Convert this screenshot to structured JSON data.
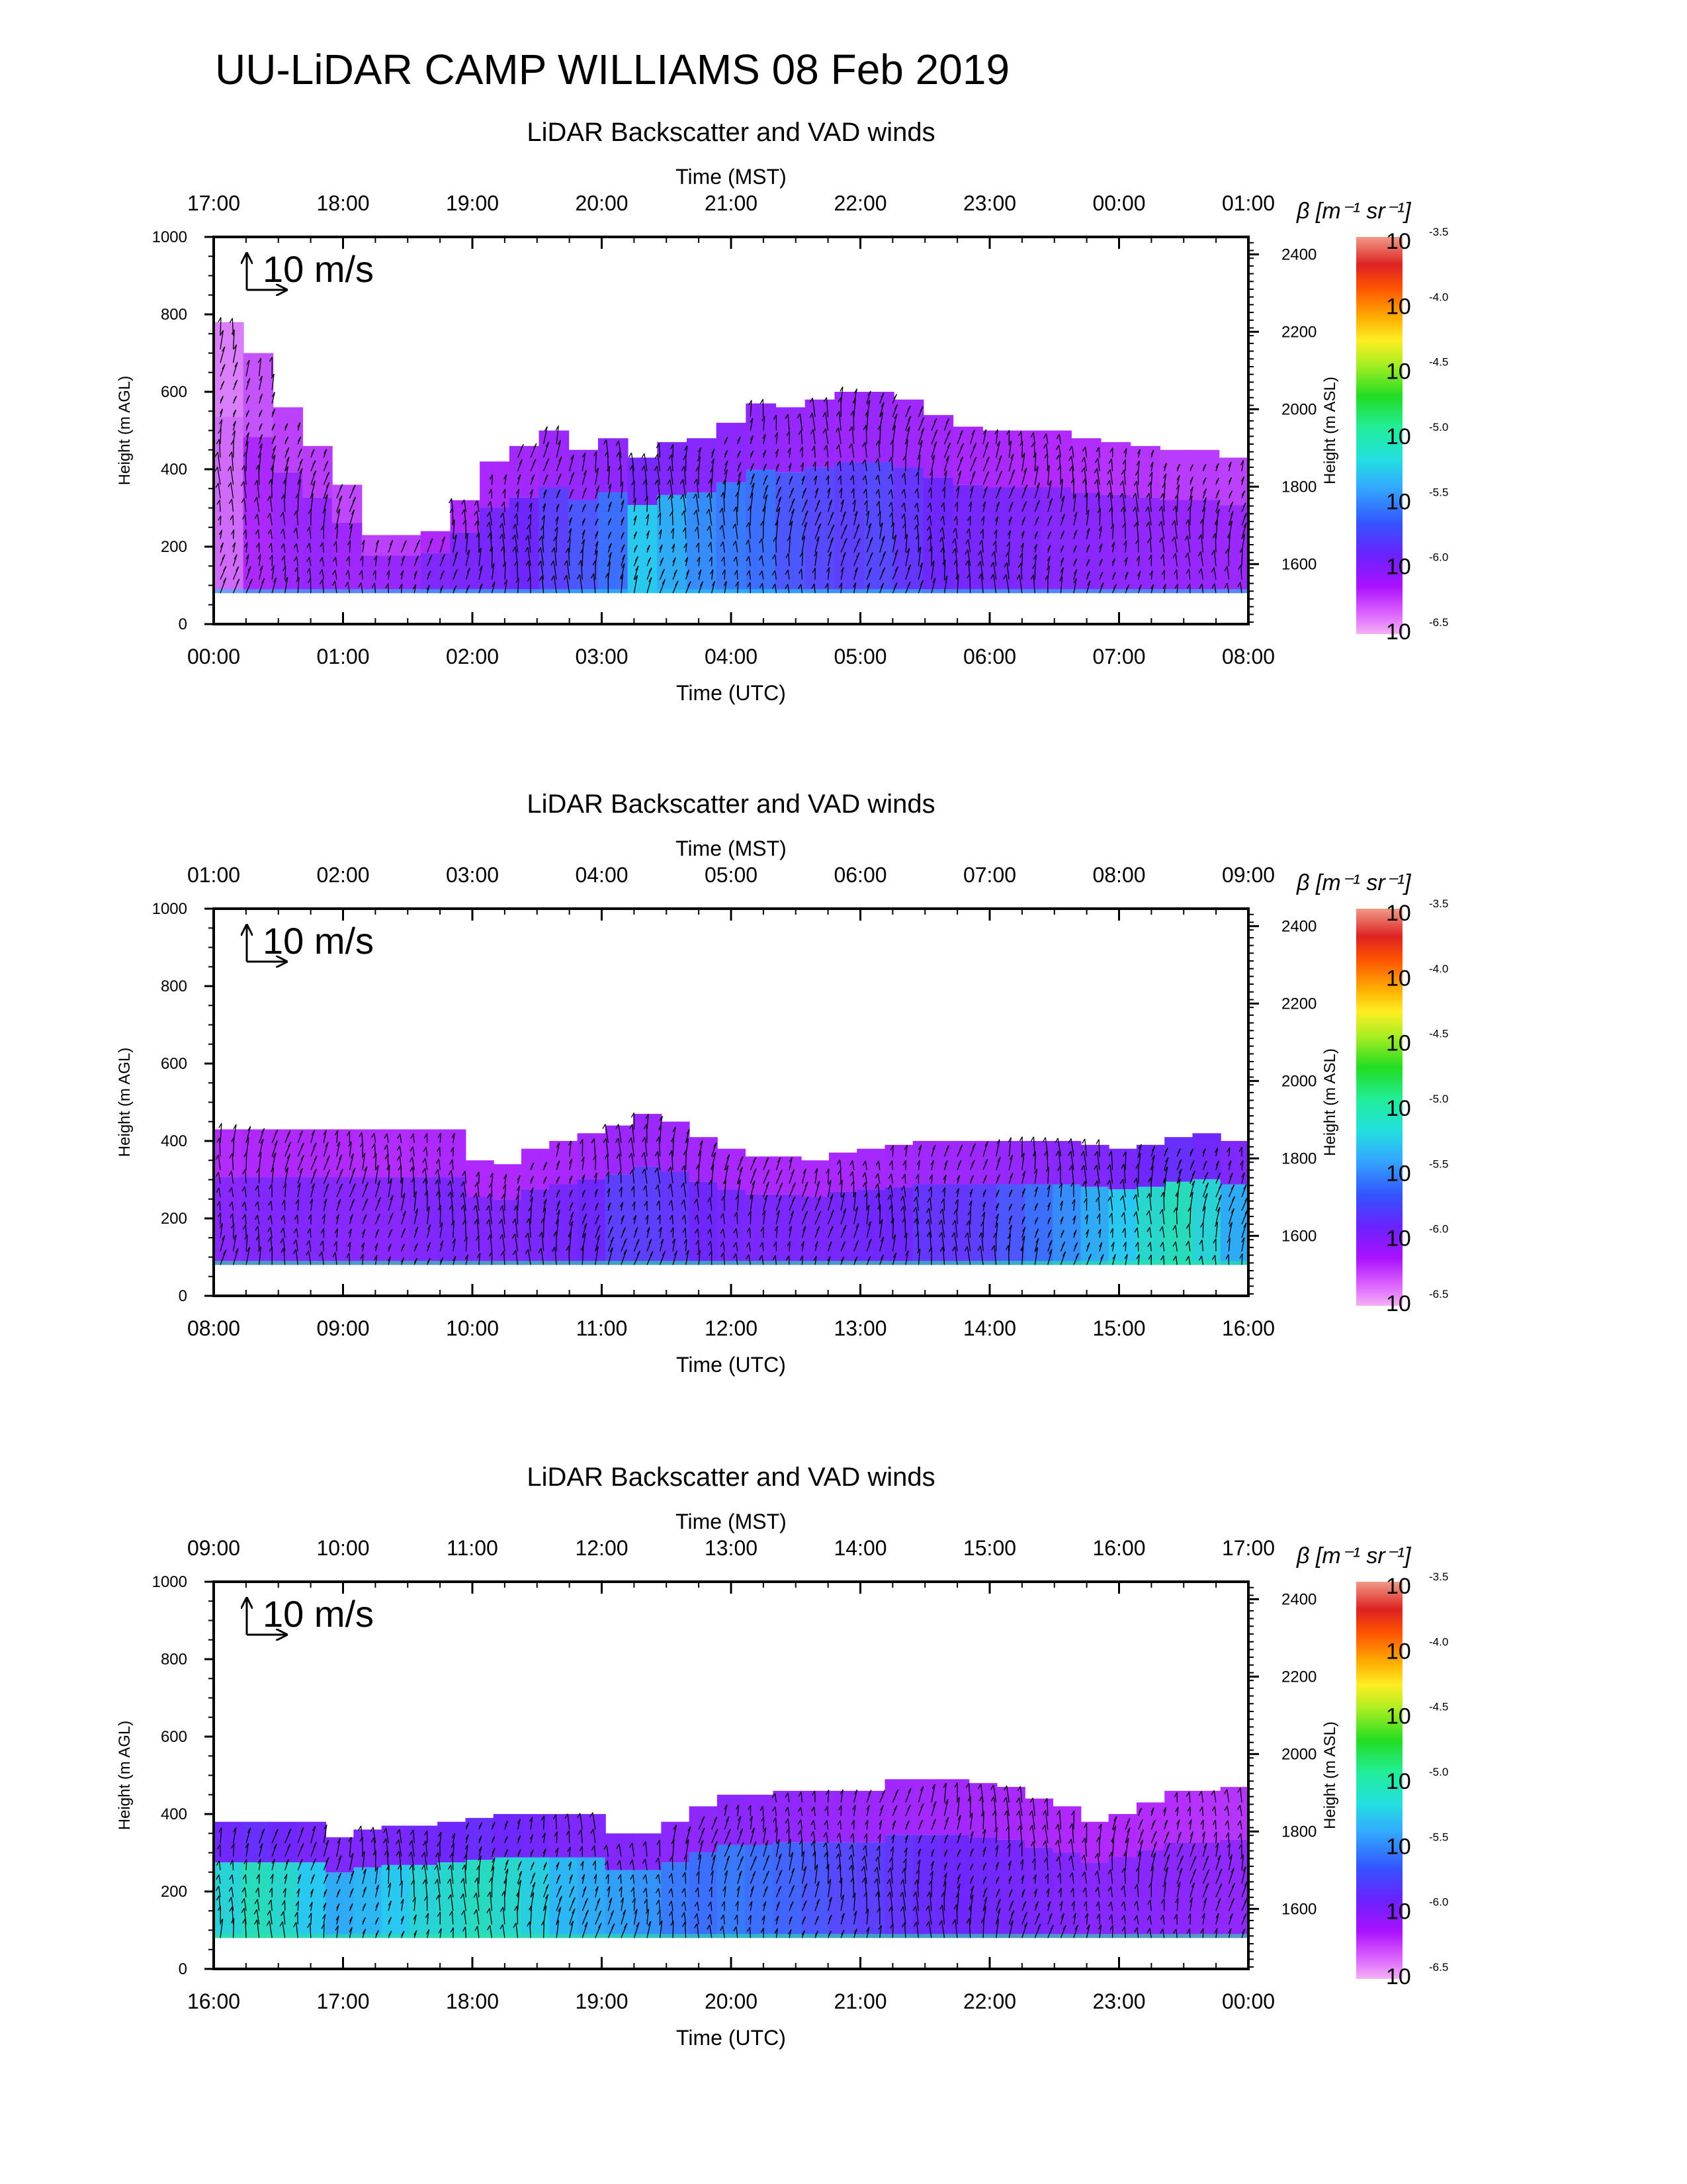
{
  "page": {
    "title": "UU-LiDAR CAMP WILLIAMS 08 Feb 2019"
  },
  "chart_data": [
    {
      "type": "heatmap",
      "title": "LiDAR Backscatter and VAD winds",
      "xlabel_bottom": "Time (UTC)",
      "xlabel_top": "Time (MST)",
      "ylabel_left": "Height (m AGL)",
      "ylabel_right": "Height (m ASL)",
      "x_ticks_bottom": [
        "00:00",
        "01:00",
        "02:00",
        "03:00",
        "04:00",
        "05:00",
        "06:00",
        "07:00",
        "08:00"
      ],
      "x_ticks_top": [
        "17:00",
        "18:00",
        "19:00",
        "20:00",
        "21:00",
        "22:00",
        "23:00",
        "00:00",
        "01:00"
      ],
      "y_ticks_left": [
        0,
        200,
        400,
        600,
        800,
        1000
      ],
      "y_ticks_right": [
        1600,
        1800,
        2000,
        2200,
        2400
      ],
      "ylim_agl": [
        0,
        1000
      ],
      "ylim_asl": [
        1445,
        2445
      ],
      "wind_scale_label": "10 m/s",
      "colorbar_label": "β [m⁻¹ sr⁻¹]",
      "colorbar_ticks": [
        "-3.5",
        "-4.0",
        "-4.5",
        "-5.0",
        "-5.5",
        "-6.0",
        "-6.5"
      ],
      "colorbar_base": "10",
      "top_height_m": [
        780,
        700,
        560,
        460,
        360,
        230,
        230,
        240,
        320,
        420,
        460,
        500,
        450,
        480,
        430,
        470,
        480,
        520,
        570,
        560,
        580,
        600,
        600,
        580,
        540,
        510,
        500,
        500,
        500,
        480,
        470,
        460,
        450,
        450,
        430
      ],
      "top_intensity": [
        0.08,
        0.22,
        0.28,
        0.3,
        0.26,
        0.28,
        0.3,
        0.38,
        0.4,
        0.42,
        0.45,
        0.5,
        0.55,
        0.6,
        0.75,
        0.7,
        0.65,
        0.62,
        0.6,
        0.55,
        0.52,
        0.5,
        0.52,
        0.48,
        0.45,
        0.42,
        0.4,
        0.38,
        0.36,
        0.35,
        0.33,
        0.32,
        0.3,
        0.3,
        0.28
      ]
    },
    {
      "type": "heatmap",
      "title": "LiDAR Backscatter and VAD winds",
      "xlabel_bottom": "Time (UTC)",
      "xlabel_top": "Time (MST)",
      "ylabel_left": "Height (m AGL)",
      "ylabel_right": "Height (m ASL)",
      "x_ticks_bottom": [
        "08:00",
        "09:00",
        "10:00",
        "11:00",
        "12:00",
        "13:00",
        "14:00",
        "15:00",
        "16:00"
      ],
      "x_ticks_top": [
        "01:00",
        "02:00",
        "03:00",
        "04:00",
        "05:00",
        "06:00",
        "07:00",
        "08:00",
        "09:00"
      ],
      "y_ticks_left": [
        0,
        200,
        400,
        600,
        800,
        1000
      ],
      "y_ticks_right": [
        1600,
        1800,
        2000,
        2200,
        2400
      ],
      "ylim_agl": [
        0,
        1000
      ],
      "ylim_asl": [
        1445,
        2445
      ],
      "wind_scale_label": "10 m/s",
      "colorbar_label": "β [m⁻¹ sr⁻¹]",
      "colorbar_ticks": [
        "-3.5",
        "-4.0",
        "-4.5",
        "-5.0",
        "-5.5",
        "-6.0",
        "-6.5"
      ],
      "colorbar_base": "10",
      "top_height_m": [
        430,
        430,
        430,
        430,
        430,
        430,
        430,
        430,
        430,
        350,
        340,
        380,
        400,
        420,
        440,
        470,
        450,
        410,
        380,
        360,
        360,
        350,
        370,
        380,
        390,
        400,
        400,
        400,
        400,
        400,
        400,
        390,
        380,
        390,
        410,
        420,
        400
      ],
      "top_intensity": [
        0.35,
        0.38,
        0.38,
        0.38,
        0.36,
        0.35,
        0.35,
        0.38,
        0.4,
        0.38,
        0.38,
        0.4,
        0.42,
        0.45,
        0.5,
        0.5,
        0.48,
        0.45,
        0.42,
        0.4,
        0.4,
        0.4,
        0.42,
        0.44,
        0.45,
        0.48,
        0.48,
        0.5,
        0.55,
        0.6,
        0.65,
        0.7,
        0.75,
        0.82,
        0.85,
        0.8,
        0.7
      ]
    },
    {
      "type": "heatmap",
      "title": "LiDAR Backscatter and VAD winds",
      "xlabel_bottom": "Time (UTC)",
      "xlabel_top": "Time (MST)",
      "ylabel_left": "Height (m AGL)",
      "ylabel_right": "Height (m ASL)",
      "x_ticks_bottom": [
        "16:00",
        "17:00",
        "18:00",
        "19:00",
        "20:00",
        "21:00",
        "22:00",
        "23:00",
        "00:00"
      ],
      "x_ticks_top": [
        "09:00",
        "10:00",
        "11:00",
        "12:00",
        "13:00",
        "14:00",
        "15:00",
        "16:00",
        "17:00"
      ],
      "y_ticks_left": [
        0,
        200,
        400,
        600,
        800,
        1000
      ],
      "y_ticks_right": [
        1600,
        1800,
        2000,
        2200,
        2400
      ],
      "ylim_agl": [
        0,
        1000
      ],
      "ylim_asl": [
        1445,
        2445
      ],
      "wind_scale_label": "10 m/s",
      "colorbar_label": "β [m⁻¹ sr⁻¹]",
      "colorbar_ticks": [
        "-3.5",
        "-4.0",
        "-4.5",
        "-5.0",
        "-5.5",
        "-6.0",
        "-6.5"
      ],
      "colorbar_base": "10",
      "top_height_m": [
        380,
        380,
        380,
        380,
        340,
        360,
        370,
        370,
        380,
        390,
        400,
        400,
        400,
        400,
        350,
        350,
        380,
        420,
        450,
        450,
        460,
        460,
        460,
        460,
        490,
        490,
        490,
        480,
        470,
        440,
        420,
        380,
        400,
        430,
        460,
        460,
        470
      ],
      "top_intensity": [
        0.8,
        0.85,
        0.82,
        0.75,
        0.7,
        0.72,
        0.75,
        0.8,
        0.82,
        0.84,
        0.82,
        0.78,
        0.72,
        0.7,
        0.68,
        0.66,
        0.62,
        0.6,
        0.62,
        0.6,
        0.58,
        0.55,
        0.52,
        0.5,
        0.48,
        0.46,
        0.45,
        0.44,
        0.42,
        0.4,
        0.38,
        0.36,
        0.36,
        0.35,
        0.34,
        0.33,
        0.32
      ]
    }
  ]
}
